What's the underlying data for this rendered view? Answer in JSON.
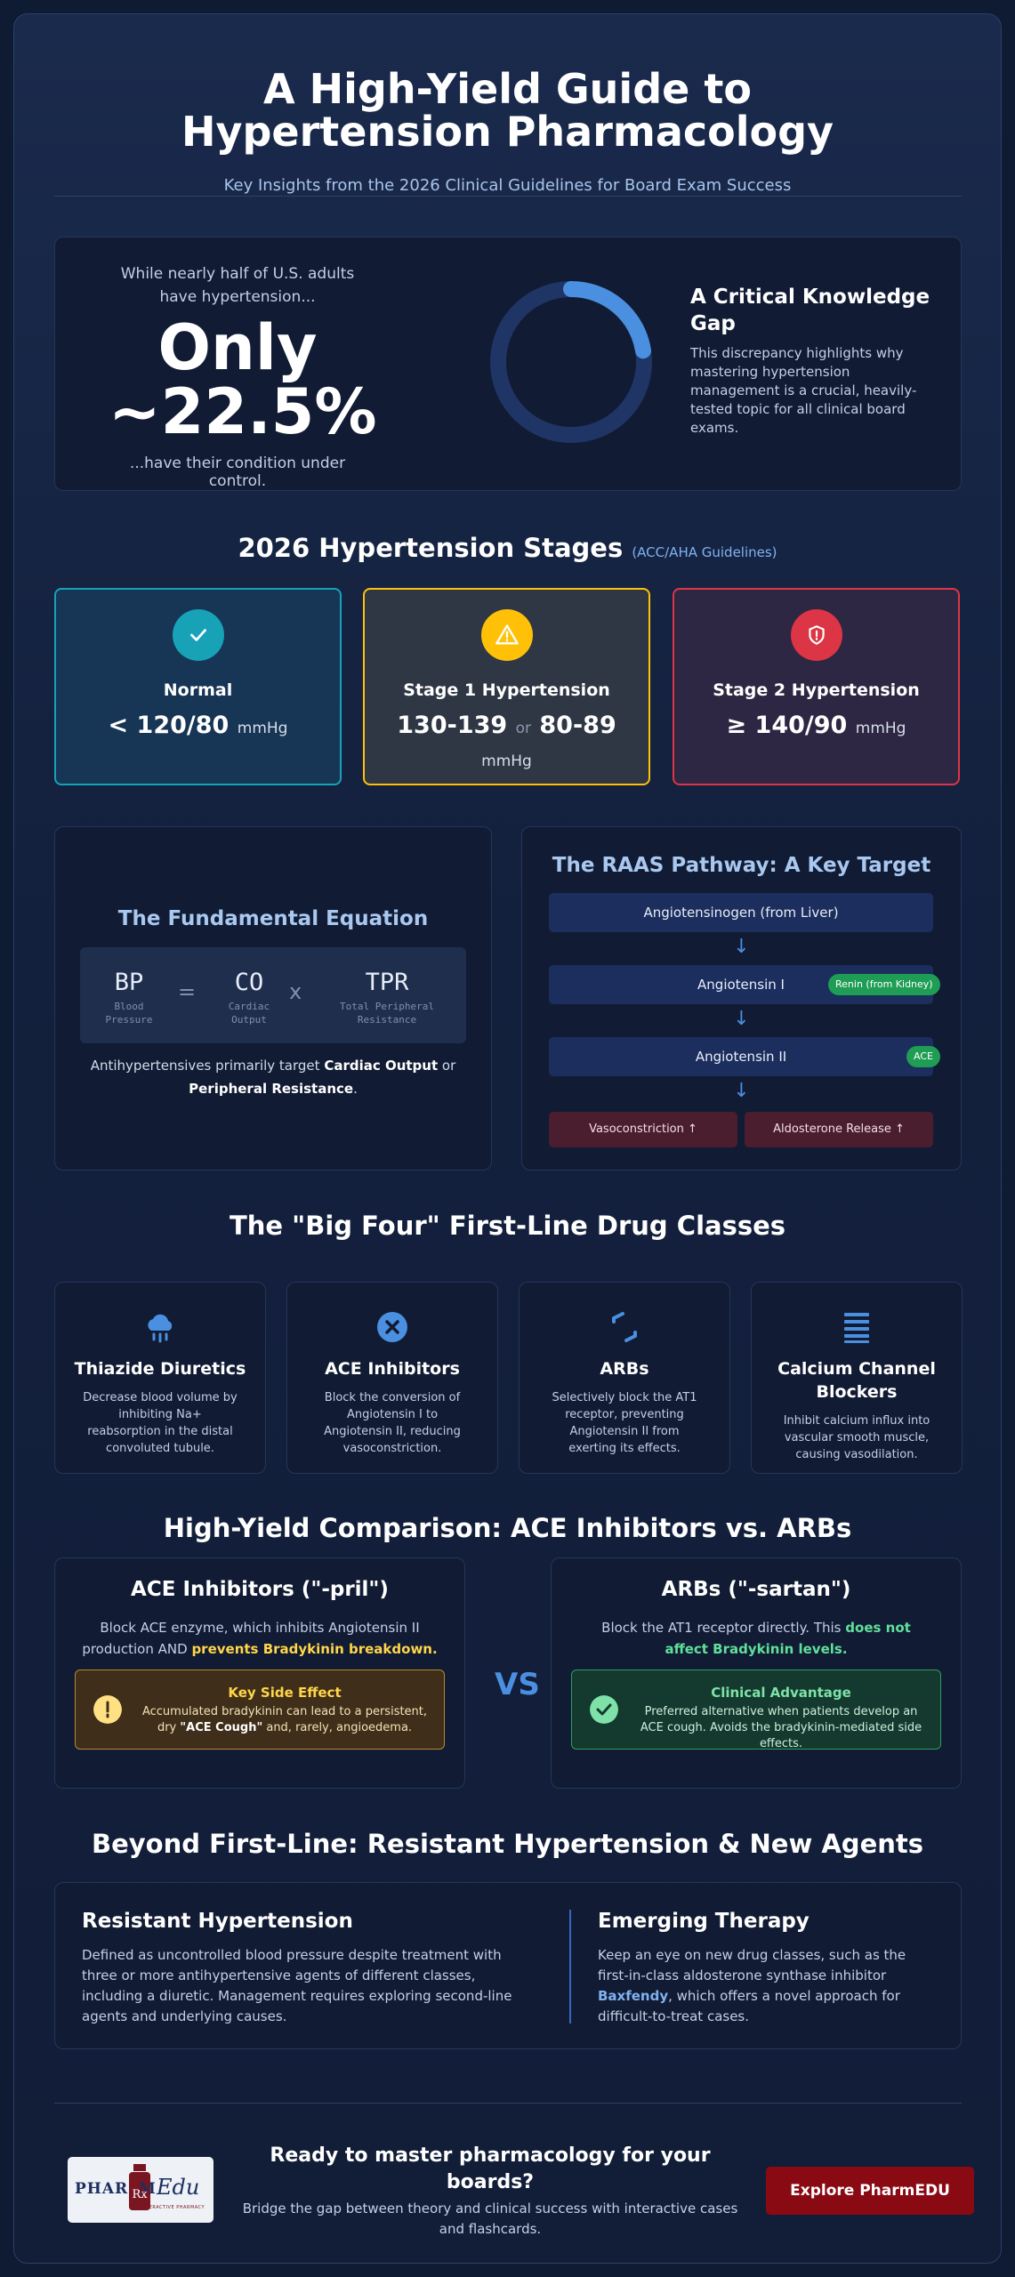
{
  "header": {
    "title": "A High-Yield Guide to Hypertension Pharmacology",
    "subtitle": "Key Insights from the 2026 Clinical Guidelines for Board Exam Success"
  },
  "stat": {
    "pre": "While nearly half of U.S. adults have hypertension...",
    "line1": "Only",
    "line2": "~22.5%",
    "post": "...have their condition under control.",
    "percent_controlled": 22.5,
    "gap_title": "A Critical Knowledge Gap",
    "gap_text": "This discrepancy highlights why mastering hypertension management is a crucial, heavily-tested topic for all clinical board exams."
  },
  "stages": {
    "title": "2026 Hypertension Stages",
    "source": "(ACC/AHA Guidelines)",
    "items": [
      {
        "name": "Normal",
        "value": "< 120/80",
        "unit": "mmHg",
        "icon": "check-icon",
        "color": "#17a2b8"
      },
      {
        "name": "Stage 1 Hypertension",
        "value_a": "130-139",
        "or": "or",
        "value_b": "80-89",
        "unit": "mmHg",
        "icon": "warning-icon",
        "color": "#ffc107"
      },
      {
        "name": "Stage 2 Hypertension",
        "value": "≥ 140/90",
        "unit": "mmHg",
        "icon": "shield-alert-icon",
        "color": "#dc3545"
      }
    ]
  },
  "equation": {
    "title": "The Fundamental Equation",
    "bp": "BP",
    "bp_desc": "Blood Pressure",
    "eq": "=",
    "co": "CO",
    "co_desc": "Cardiac Output",
    "x": "x",
    "tpr": "TPR",
    "tpr_desc": "Total Peripheral Resistance",
    "note_pre": "Antihypertensives primarily target ",
    "note_b1": "Cardiac Output",
    "note_mid": " or",
    "note_b2": "Peripheral Resistance",
    "note_end": "."
  },
  "raas": {
    "title": "The RAAS Pathway: A Key Target",
    "step1": "Angiotensinogen (from Liver)",
    "step2": "Angiotensin I",
    "step2_pill": "Renin (from Kidney)",
    "step3": "Angiotensin II",
    "step3_pill": "ACE",
    "out1": "Vasoconstriction ↑",
    "out2": "Aldosterone Release ↑",
    "arrow": "↓"
  },
  "drugs": {
    "title": "The \"Big Four\" First-Line Drug Classes",
    "items": [
      {
        "name": "Thiazide Diuretics",
        "desc": "Decrease blood volume by inhibiting Na+ reabsorption in the distal convoluted tubule.",
        "icon": "rain-cloud-icon"
      },
      {
        "name": "ACE Inhibitors",
        "desc": "Block the conversion of Angiotensin I to Angiotensin II, reducing vasoconstriction.",
        "icon": "x-circle-icon"
      },
      {
        "name": "ARBs",
        "desc": "Selectively block the AT1 receptor, preventing Angiotensin II from exerting its effects.",
        "icon": "block-arrows-icon"
      },
      {
        "name": "Calcium Channel Blockers",
        "desc": "Inhibit calcium influx into vascular smooth muscle, causing vasodilation.",
        "icon": "bars-icon"
      }
    ]
  },
  "comparison": {
    "title": "High-Yield Comparison: ACE Inhibitors vs. ARBs",
    "vs": "VS",
    "ace": {
      "title": "ACE Inhibitors (\"-pril\")",
      "text": "Block ACE enzyme, which inhibits Angiotensin II production AND ",
      "highlight": "prevents Bradykinin breakdown.",
      "note_title": "Key Side Effect",
      "note_pre": "Accumulated bradykinin can lead to a persistent, dry ",
      "note_b": "\"ACE Cough\"",
      "note_end": " and, rarely, angioedema."
    },
    "arb": {
      "title": "ARBs (\"-sartan\")",
      "text": "Block the AT1 receptor directly. This ",
      "highlight": "does not affect Bradykinin levels.",
      "note_title": "Clinical Advantage",
      "note_text": "Preferred alternative when patients develop an ACE cough. Avoids the bradykinin-mediated side effects."
    }
  },
  "beyond": {
    "title": "Beyond First-Line: Resistant Hypertension & New Agents",
    "left_title": "Resistant Hypertension",
    "left_text": "Defined as uncontrolled blood pressure despite treatment with three or more antihypertensive agents of different classes, including a diuretic. Management requires exploring second-line agents and underlying causes.",
    "right_title": "Emerging Therapy",
    "right_pre": "Keep an eye on new drug classes, such as the first-in-class aldosterone synthase inhibitor ",
    "right_b": "Baxfendy",
    "right_end": ", which offers a novel approach for difficult-to-treat cases."
  },
  "footer": {
    "logo_a": "PHAR",
    "logo_b": "M",
    "logo_c": "Edu",
    "logo_tagline": "INTERACTIVE PHARMACY",
    "cta_title": "Ready to master pharmacology for your boards?",
    "cta_text": "Bridge the gap between theory and clinical success with interactive cases and flashcards.",
    "button": "Explore PharmEDU"
  }
}
